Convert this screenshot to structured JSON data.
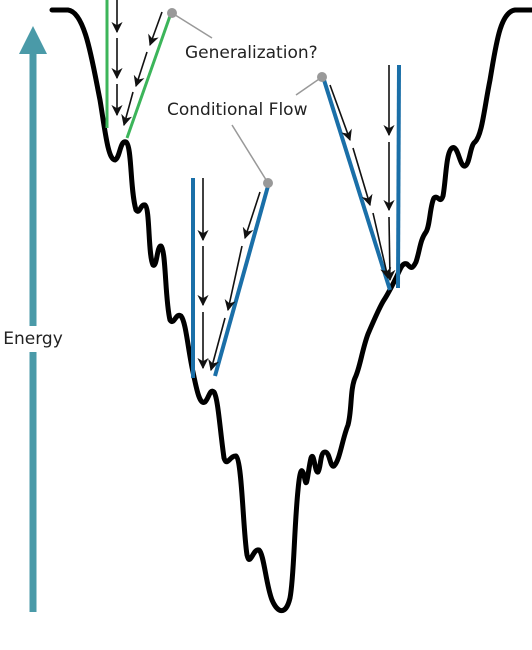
{
  "labels": {
    "generalization": "Generalization?",
    "conditional_flow": "Conditional Flow",
    "energy": "Energy"
  }
}
